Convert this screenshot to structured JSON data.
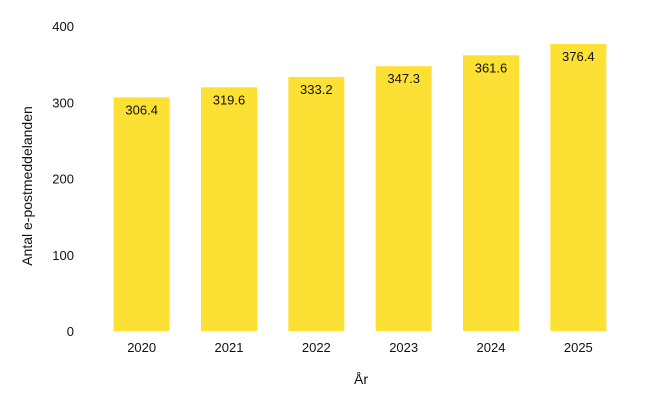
{
  "chart_data": {
    "type": "bar",
    "categories": [
      "2020",
      "2021",
      "2022",
      "2023",
      "2024",
      "2025"
    ],
    "values": [
      306.4,
      319.6,
      333.2,
      347.3,
      361.6,
      376.4
    ],
    "data_labels": [
      "306.4",
      "319.6",
      "333.2",
      "347.3",
      "361.6",
      "376.4"
    ],
    "title": "",
    "xlabel": "År",
    "ylabel": "Antal e-postmeddelanden",
    "ylim": [
      0,
      400
    ],
    "yticks": [
      "0",
      "100",
      "200",
      "300",
      "400"
    ],
    "grid": false,
    "legend": "none",
    "bar_color": "#FDE034"
  }
}
